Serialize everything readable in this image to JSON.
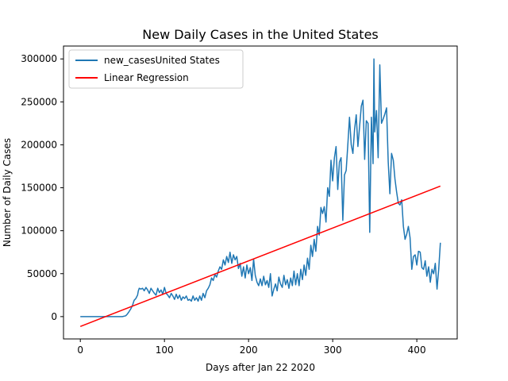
{
  "chart_data": {
    "type": "line",
    "title": "New Daily Cases in the United States",
    "xlabel": "Days after Jan 22 2020",
    "ylabel": "Number of Daily Cases",
    "xlim": [
      -20,
      448
    ],
    "ylim": [
      -26000,
      315000
    ],
    "xticks": [
      0,
      100,
      200,
      300,
      400
    ],
    "yticks": [
      0,
      50000,
      100000,
      150000,
      200000,
      250000,
      300000
    ],
    "xtick_labels": [
      "0",
      "100",
      "200",
      "300",
      "400"
    ],
    "ytick_labels": [
      "0",
      "50000",
      "100000",
      "150000",
      "200000",
      "250000",
      "300000"
    ],
    "legend_position": "top-left",
    "grid": false,
    "series": [
      {
        "name": "new_casesUnited States",
        "color": "#1f77b4",
        "points": [
          [
            0,
            0
          ],
          [
            10,
            0
          ],
          [
            20,
            0
          ],
          [
            30,
            0
          ],
          [
            40,
            0
          ],
          [
            50,
            0
          ],
          [
            54,
            1000
          ],
          [
            56,
            3000
          ],
          [
            58,
            6000
          ],
          [
            60,
            9000
          ],
          [
            62,
            13000
          ],
          [
            64,
            19000
          ],
          [
            66,
            21000
          ],
          [
            68,
            25000
          ],
          [
            69,
            30000
          ],
          [
            70,
            33000
          ],
          [
            72,
            32000
          ],
          [
            74,
            33000
          ],
          [
            76,
            30000
          ],
          [
            78,
            34000
          ],
          [
            80,
            31000
          ],
          [
            82,
            27000
          ],
          [
            84,
            33000
          ],
          [
            86,
            30000
          ],
          [
            88,
            27000
          ],
          [
            90,
            25000
          ],
          [
            92,
            33000
          ],
          [
            94,
            28000
          ],
          [
            96,
            31000
          ],
          [
            98,
            26000
          ],
          [
            100,
            34000
          ],
          [
            102,
            27000
          ],
          [
            104,
            25000
          ],
          [
            106,
            22000
          ],
          [
            108,
            27000
          ],
          [
            110,
            24000
          ],
          [
            112,
            20000
          ],
          [
            114,
            26000
          ],
          [
            116,
            21000
          ],
          [
            118,
            25000
          ],
          [
            120,
            19000
          ],
          [
            122,
            23000
          ],
          [
            124,
            21000
          ],
          [
            126,
            24000
          ],
          [
            128,
            19000
          ],
          [
            130,
            20000
          ],
          [
            132,
            18000
          ],
          [
            134,
            24000
          ],
          [
            136,
            19000
          ],
          [
            138,
            22000
          ],
          [
            140,
            18000
          ],
          [
            142,
            24000
          ],
          [
            144,
            19000
          ],
          [
            146,
            27000
          ],
          [
            148,
            22000
          ],
          [
            150,
            30000
          ],
          [
            152,
            33000
          ],
          [
            154,
            37000
          ],
          [
            156,
            45000
          ],
          [
            158,
            42000
          ],
          [
            160,
            49000
          ],
          [
            162,
            46000
          ],
          [
            164,
            53000
          ],
          [
            166,
            58000
          ],
          [
            168,
            55000
          ],
          [
            170,
            66000
          ],
          [
            172,
            60000
          ],
          [
            174,
            70000
          ],
          [
            176,
            63000
          ],
          [
            178,
            75000
          ],
          [
            180,
            62000
          ],
          [
            182,
            72000
          ],
          [
            184,
            66000
          ],
          [
            186,
            70000
          ],
          [
            188,
            56000
          ],
          [
            190,
            62000
          ],
          [
            192,
            47000
          ],
          [
            194,
            58000
          ],
          [
            196,
            45000
          ],
          [
            198,
            60000
          ],
          [
            200,
            50000
          ],
          [
            202,
            57000
          ],
          [
            204,
            42000
          ],
          [
            206,
            67000
          ],
          [
            208,
            48000
          ],
          [
            210,
            40000
          ],
          [
            212,
            36000
          ],
          [
            214,
            44000
          ],
          [
            216,
            36000
          ],
          [
            218,
            47000
          ],
          [
            220,
            37000
          ],
          [
            222,
            42000
          ],
          [
            224,
            34000
          ],
          [
            226,
            50000
          ],
          [
            228,
            24000
          ],
          [
            230,
            32000
          ],
          [
            232,
            38000
          ],
          [
            234,
            30000
          ],
          [
            236,
            46000
          ],
          [
            238,
            38000
          ],
          [
            240,
            34000
          ],
          [
            242,
            48000
          ],
          [
            244,
            37000
          ],
          [
            246,
            43000
          ],
          [
            248,
            33000
          ],
          [
            250,
            45000
          ],
          [
            252,
            36000
          ],
          [
            254,
            53000
          ],
          [
            256,
            37000
          ],
          [
            258,
            50000
          ],
          [
            260,
            36000
          ],
          [
            262,
            55000
          ],
          [
            264,
            43000
          ],
          [
            266,
            60000
          ],
          [
            268,
            48000
          ],
          [
            270,
            68000
          ],
          [
            272,
            55000
          ],
          [
            274,
            83000
          ],
          [
            276,
            70000
          ],
          [
            278,
            90000
          ],
          [
            280,
            76000
          ],
          [
            282,
            105000
          ],
          [
            284,
            95000
          ],
          [
            286,
            127000
          ],
          [
            288,
            120000
          ],
          [
            290,
            128000
          ],
          [
            292,
            110000
          ],
          [
            294,
            150000
          ],
          [
            296,
            140000
          ],
          [
            298,
            182000
          ],
          [
            300,
            158000
          ],
          [
            302,
            185000
          ],
          [
            304,
            198000
          ],
          [
            306,
            148000
          ],
          [
            308,
            180000
          ],
          [
            310,
            185000
          ],
          [
            312,
            112000
          ],
          [
            314,
            165000
          ],
          [
            316,
            170000
          ],
          [
            318,
            200000
          ],
          [
            320,
            232000
          ],
          [
            322,
            200000
          ],
          [
            324,
            190000
          ],
          [
            326,
            218000
          ],
          [
            328,
            235000
          ],
          [
            330,
            198000
          ],
          [
            332,
            222000
          ],
          [
            334,
            245000
          ],
          [
            336,
            252000
          ],
          [
            338,
            183000
          ],
          [
            340,
            228000
          ],
          [
            342,
            225000
          ],
          [
            344,
            98000
          ],
          [
            346,
            232000
          ],
          [
            348,
            178000
          ],
          [
            349,
            300000
          ],
          [
            350,
            215000
          ],
          [
            352,
            240000
          ],
          [
            354,
            185000
          ],
          [
            356,
            293000
          ],
          [
            358,
            225000
          ],
          [
            360,
            230000
          ],
          [
            362,
            236000
          ],
          [
            364,
            243000
          ],
          [
            366,
            180000
          ],
          [
            368,
            143000
          ],
          [
            370,
            190000
          ],
          [
            372,
            182000
          ],
          [
            374,
            160000
          ],
          [
            376,
            145000
          ],
          [
            378,
            132000
          ],
          [
            380,
            130000
          ],
          [
            382,
            136000
          ],
          [
            384,
            105000
          ],
          [
            386,
            90000
          ],
          [
            388,
            96000
          ],
          [
            390,
            105000
          ],
          [
            392,
            92000
          ],
          [
            394,
            55000
          ],
          [
            396,
            70000
          ],
          [
            398,
            72000
          ],
          [
            400,
            60000
          ],
          [
            402,
            76000
          ],
          [
            404,
            75000
          ],
          [
            406,
            57000
          ],
          [
            408,
            55000
          ],
          [
            410,
            65000
          ],
          [
            412,
            47000
          ],
          [
            414,
            58000
          ],
          [
            416,
            40000
          ],
          [
            418,
            55000
          ],
          [
            420,
            50000
          ],
          [
            422,
            62000
          ],
          [
            424,
            32000
          ],
          [
            426,
            55000
          ],
          [
            428,
            86000
          ]
        ]
      },
      {
        "name": "Linear Regression",
        "color": "#ff0000",
        "points": [
          [
            0,
            -11500
          ],
          [
            428,
            152000
          ]
        ]
      }
    ]
  }
}
